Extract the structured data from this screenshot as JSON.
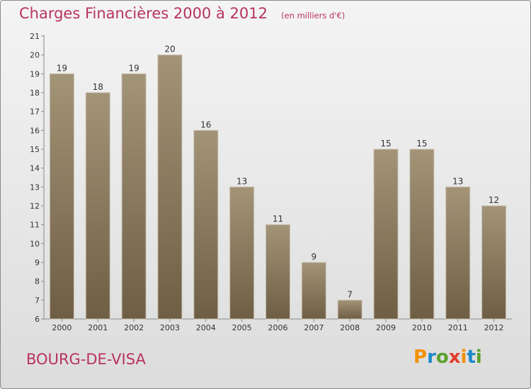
{
  "title": "Charges Financières 2000 à 2012",
  "subtitle": "(en milliers d'€)",
  "place": "BOURG-DE-VISA",
  "logo": {
    "text": "Proxiti",
    "letter_colors": [
      "#f39200",
      "#1e88c8",
      "#5aa02c",
      "#e23b2e",
      "#f39200",
      "#1e88c8",
      "#5aa02c"
    ]
  },
  "colors": {
    "bar_top": "#a39478",
    "bar_bottom": "#6e5e43",
    "title": "#b8335f"
  },
  "chart_data": {
    "type": "bar",
    "categories": [
      "2000",
      "2001",
      "2002",
      "2003",
      "2004",
      "2005",
      "2006",
      "2007",
      "2008",
      "2009",
      "2010",
      "2011",
      "2012"
    ],
    "values": [
      19,
      18,
      19,
      20,
      16,
      13,
      11,
      9,
      7,
      15,
      15,
      13,
      12
    ],
    "title": "Charges Financières 2000 à 2012",
    "subtitle": "(en milliers d'€)",
    "ylim": [
      6,
      21
    ],
    "yticks": [
      6,
      7,
      8,
      9,
      10,
      11,
      12,
      13,
      14,
      15,
      16,
      17,
      18,
      19,
      20,
      21
    ],
    "grid": false
  }
}
